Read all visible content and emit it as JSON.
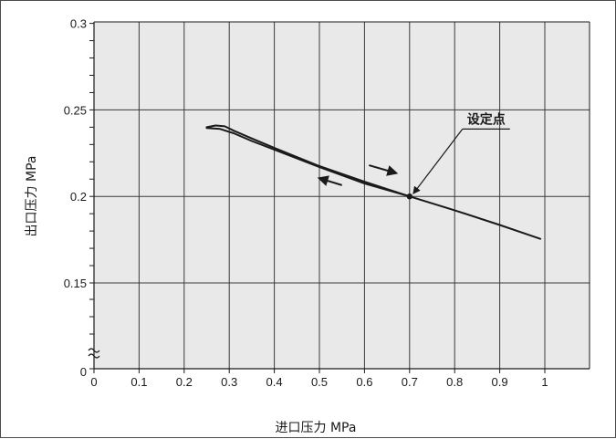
{
  "chart_data": {
    "type": "line",
    "title": "",
    "xlabel": "进口压力 MPa",
    "ylabel": "出口压力 MPa",
    "xlim": [
      0,
      1.1
    ],
    "ylim_display": [
      0.125,
      0.3
    ],
    "x_ticks": [
      0,
      0.1,
      0.2,
      0.3,
      0.4,
      0.5,
      0.6,
      0.7,
      0.8,
      0.9,
      1
    ],
    "x_tick_labels": [
      "0",
      "0.1",
      "0.2",
      "0.3",
      "0.4",
      "0.5",
      "0.6",
      "0.7",
      "0.8",
      "0.9",
      "1"
    ],
    "y_ticks": [
      0.15,
      0.2,
      0.25,
      0.3
    ],
    "y_tick_labels": [
      "0.15",
      "0.2",
      "0.25",
      "0.3"
    ],
    "y_origin_label": "0",
    "axis_break": "y",
    "grid": true,
    "series": [
      {
        "values": [
          [
            0.25,
            0.24
          ],
          [
            0.27,
            0.241
          ],
          [
            0.29,
            0.2405
          ],
          [
            0.31,
            0.238
          ],
          [
            0.35,
            0.2335
          ],
          [
            0.4,
            0.228
          ],
          [
            0.5,
            0.2175
          ],
          [
            0.6,
            0.2085
          ],
          [
            0.7,
            0.2
          ],
          [
            0.8,
            0.192
          ],
          [
            0.9,
            0.1835
          ],
          [
            0.99,
            0.1755
          ]
        ]
      },
      {
        "values": [
          [
            0.7,
            0.2
          ],
          [
            0.6,
            0.2075
          ],
          [
            0.5,
            0.217
          ],
          [
            0.4,
            0.227
          ],
          [
            0.35,
            0.232
          ],
          [
            0.31,
            0.2365
          ],
          [
            0.28,
            0.239
          ],
          [
            0.25,
            0.2395
          ]
        ]
      }
    ],
    "arrows": [
      {
        "from": [
          0.61,
          0.218
        ],
        "to": [
          0.67,
          0.2135
        ]
      },
      {
        "from": [
          0.55,
          0.2065
        ],
        "to": [
          0.5,
          0.2105
        ]
      }
    ],
    "annotations": [
      {
        "text": "设定点",
        "point": [
          0.7,
          0.2
        ],
        "text_at": [
          0.87,
          0.24
        ]
      }
    ],
    "colors": {
      "line": "#1a1a1a",
      "grid": "#3a3a3a",
      "plot_bg": "#e9e9e9",
      "axis": "#1a1a1a"
    }
  }
}
